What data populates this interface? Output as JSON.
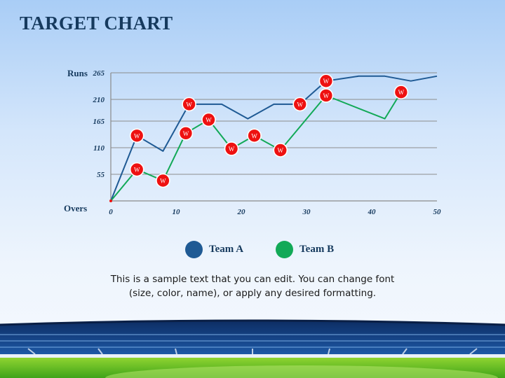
{
  "title": "TARGET CHART",
  "caption": "This is a sample text that you can edit. You can change font (size, color, name), or apply any desired formatting.",
  "colors": {
    "team_a": "#1f5a94",
    "team_b": "#12a957",
    "wicket": "#ee1111",
    "title": "#163a5e"
  },
  "chart_data": {
    "type": "line",
    "title": "TARGET CHART",
    "xlabel": "Overs",
    "ylabel": "Runs",
    "xlim": [
      0,
      50
    ],
    "ylim": [
      0,
      265
    ],
    "xticks": [
      "0",
      "10",
      "20",
      "30",
      "40",
      "50"
    ],
    "yticks": [
      "55",
      "110",
      "165",
      "210",
      "265"
    ],
    "grid": "horizontal",
    "legend_position": "bottom",
    "wicket_marker_label": "W",
    "series": [
      {
        "name": "Team A",
        "color": "#1f5a94",
        "x": [
          0,
          4,
          8,
          12,
          17,
          21,
          25,
          29,
          33,
          38,
          42,
          46,
          50
        ],
        "y": [
          0,
          135,
          103,
          200,
          200,
          170,
          200,
          200,
          248,
          258,
          258,
          248,
          258
        ],
        "wickets_at": [
          4,
          12,
          29,
          33
        ]
      },
      {
        "name": "Team B",
        "color": "#12a957",
        "x": [
          0,
          4,
          8,
          11.5,
          15,
          18.5,
          22,
          26,
          33,
          42,
          44.5
        ],
        "y": [
          0,
          65,
          42,
          140,
          168,
          108,
          135,
          105,
          218,
          170,
          225
        ],
        "wickets_at": [
          4,
          8,
          11.5,
          15,
          18.5,
          22,
          26,
          33,
          44.5
        ]
      }
    ]
  }
}
